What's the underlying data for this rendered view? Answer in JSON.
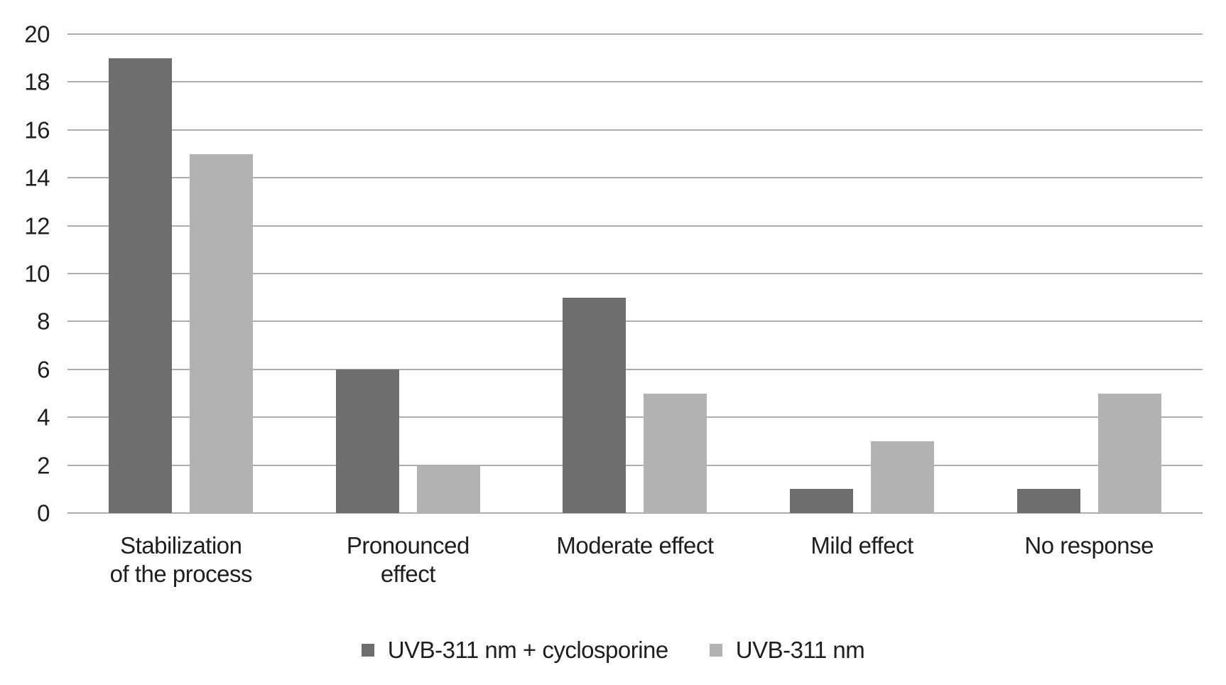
{
  "chart_data": {
    "type": "bar",
    "title": "",
    "xlabel": "",
    "ylabel": "",
    "categories": [
      "Stabilization\nof the process",
      "Pronounced\neffect",
      "Moderate effect",
      "Mild effect",
      "No response"
    ],
    "series": [
      {
        "name": "UVB-311 nm + cyclosporine",
        "color": "#6f6e6e",
        "values": [
          19,
          6,
          9,
          1,
          1
        ]
      },
      {
        "name": "UVB-311 nm",
        "color": "#b3b2b2",
        "values": [
          15,
          2,
          5,
          3,
          5
        ]
      }
    ],
    "ylim": [
      0,
      20
    ],
    "ytick_step": 2,
    "ytick_labels": [
      "0",
      "2",
      "4",
      "6",
      "8",
      "10",
      "12",
      "14",
      "16",
      "18",
      "20"
    ],
    "grid": true,
    "legend_position": "bottom"
  },
  "colors": {
    "background": "#ffffff",
    "gridline": "#aeaeae",
    "text": "#1e1e1e",
    "series_dark": "#6f6e6e",
    "series_light": "#b3b2b2"
  }
}
